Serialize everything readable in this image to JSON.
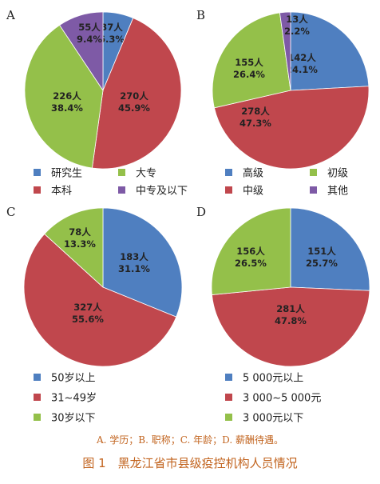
{
  "figure": {
    "subcaption": "A. 学历；B. 职称；C. 年龄；D. 薪酬待遇。",
    "caption": "图 1　黑龙江省市县级疫控机构人员情况"
  },
  "colors": {
    "blue": "#4f7fc0",
    "red": "#c0474d",
    "green": "#94c04a",
    "purple": "#7e5aa6"
  },
  "chart_data": [
    {
      "panel": "A",
      "type": "pie",
      "slices": [
        {
          "label": "研究生",
          "count_text": "37人",
          "percent_text": "6.3%",
          "value": 37,
          "color": "#4f7fc0"
        },
        {
          "label": "本科",
          "count_text": "270人",
          "percent_text": "45.9%",
          "value": 270,
          "color": "#c0474d"
        },
        {
          "label": "大专",
          "count_text": "226人",
          "percent_text": "38.4%",
          "value": 226,
          "color": "#94c04a"
        },
        {
          "label": "中专及以下",
          "count_text": "55人",
          "percent_text": "9.4%",
          "value": 55,
          "color": "#7e5aa6"
        }
      ],
      "legend": [
        "研究生",
        "大专",
        "本科",
        "中专及以下"
      ]
    },
    {
      "panel": "B",
      "type": "pie",
      "slices": [
        {
          "label": "高级",
          "count_text": "142人",
          "percent_text": "24.1%",
          "value": 142,
          "color": "#4f7fc0"
        },
        {
          "label": "中级",
          "count_text": "278人",
          "percent_text": "47.3%",
          "value": 278,
          "color": "#c0474d"
        },
        {
          "label": "初级",
          "count_text": "155人",
          "percent_text": "26.4%",
          "value": 155,
          "color": "#94c04a"
        },
        {
          "label": "其他",
          "count_text": "13人",
          "percent_text": "2.2%",
          "value": 13,
          "color": "#7e5aa6"
        }
      ],
      "legend": [
        "高级",
        "初级",
        "中级",
        "其他"
      ]
    },
    {
      "panel": "C",
      "type": "pie",
      "slices": [
        {
          "label": "50岁以上",
          "count_text": "183人",
          "percent_text": "31.1%",
          "value": 183,
          "color": "#4f7fc0"
        },
        {
          "label": "31~49岁",
          "count_text": "327人",
          "percent_text": "55.6%",
          "value": 327,
          "color": "#c0474d"
        },
        {
          "label": "30岁以下",
          "count_text": "78人",
          "percent_text": "13.3%",
          "value": 78,
          "color": "#94c04a"
        }
      ],
      "legend": [
        "50岁以上",
        "31~49岁",
        "30岁以下"
      ]
    },
    {
      "panel": "D",
      "type": "pie",
      "slices": [
        {
          "label": "5 000元以上",
          "count_text": "151人",
          "percent_text": "25.7%",
          "value": 151,
          "color": "#4f7fc0"
        },
        {
          "label": "3 000~5 000元",
          "count_text": "281人",
          "percent_text": "47.8%",
          "value": 281,
          "color": "#c0474d"
        },
        {
          "label": "3 000元以下",
          "count_text": "156人",
          "percent_text": "26.5%",
          "value": 156,
          "color": "#94c04a"
        }
      ],
      "legend": [
        "5 000元以上",
        "3 000~5 000元",
        "3 000元以下"
      ]
    }
  ]
}
